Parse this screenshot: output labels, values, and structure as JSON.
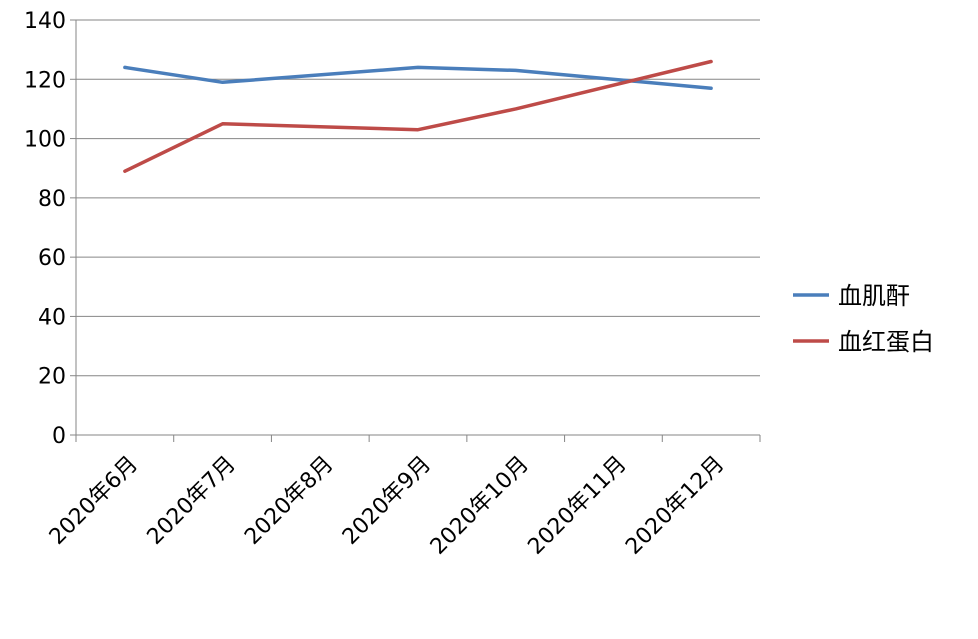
{
  "chart_data": {
    "type": "line",
    "categories": [
      "2020年6月",
      "2020年7月",
      "2020年8月",
      "2020年9月",
      "2020年10月",
      "2020年11月",
      "2020年12月"
    ],
    "series": [
      {
        "name": "血肌酐",
        "color": "#4A7EBB",
        "values": [
          124,
          119,
          null,
          124,
          123,
          null,
          117
        ]
      },
      {
        "name": "血红蛋白",
        "color": "#BE4B48",
        "values": [
          89,
          105,
          null,
          103,
          110,
          null,
          126
        ]
      }
    ],
    "ylim": [
      0,
      140
    ],
    "y_ticks": [
      "0",
      "20",
      "40",
      "60",
      "80",
      "100",
      "120",
      "140"
    ],
    "grid": true,
    "legend_position": "right"
  }
}
